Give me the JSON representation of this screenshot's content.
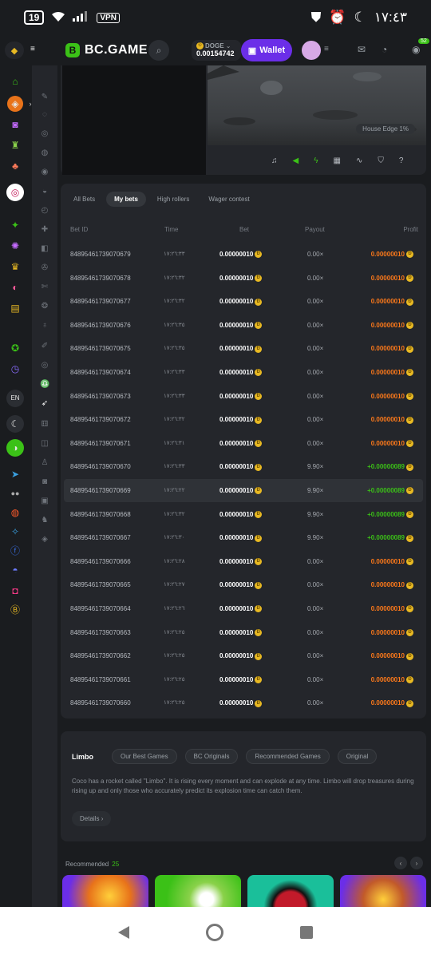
{
  "status": {
    "battery": "19",
    "vpn": "VPN",
    "time": "١٧:٤٣"
  },
  "header": {
    "logo_badge": "B",
    "logo": "BC.GAME",
    "currency_name": "DOGE",
    "balance": "0.00154742",
    "wallet_label": "Wallet",
    "chat_badge": "52"
  },
  "game": {
    "house_edge": "House Edge 1%"
  },
  "tabs": [
    "All Bets",
    "My bets",
    "High rollers",
    "Wager contest"
  ],
  "table": {
    "headers": {
      "id": "Bet ID",
      "time": "Time",
      "bet": "Bet",
      "payout": "Payout",
      "profit": "Profit"
    },
    "rows": [
      {
        "id": "84895461739070679",
        "time": "١٧:٢٦:٣٣",
        "bet": "0.00000010",
        "payout": "0.00×",
        "profit": "0.00000010",
        "win": false
      },
      {
        "id": "84895461739070678",
        "time": "١٧:٢٦:٣٢",
        "bet": "0.00000010",
        "payout": "0.00×",
        "profit": "0.00000010",
        "win": false
      },
      {
        "id": "84895461739070677",
        "time": "١٧:٢٦:٣٢",
        "bet": "0.00000010",
        "payout": "0.00×",
        "profit": "0.00000010",
        "win": false
      },
      {
        "id": "84895461739070676",
        "time": "١٧:٢٦:٣٥",
        "bet": "0.00000010",
        "payout": "0.00×",
        "profit": "0.00000010",
        "win": false
      },
      {
        "id": "84895461739070675",
        "time": "١٧:٢٦:٣٥",
        "bet": "0.00000010",
        "payout": "0.00×",
        "profit": "0.00000010",
        "win": false
      },
      {
        "id": "84895461739070674",
        "time": "١٧:٢٦:٣٣",
        "bet": "0.00000010",
        "payout": "0.00×",
        "profit": "0.00000010",
        "win": false
      },
      {
        "id": "84895461739070673",
        "time": "١٧:٢٦:٣٣",
        "bet": "0.00000010",
        "payout": "0.00×",
        "profit": "0.00000010",
        "win": false
      },
      {
        "id": "84895461739070672",
        "time": "١٧:٢٦:٣٢",
        "bet": "0.00000010",
        "payout": "0.00×",
        "profit": "0.00000010",
        "win": false
      },
      {
        "id": "84895461739070671",
        "time": "١٧:٢٦:٣١",
        "bet": "0.00000010",
        "payout": "0.00×",
        "profit": "0.00000010",
        "win": false
      },
      {
        "id": "84895461739070670",
        "time": "١٧:٢٦:٣٣",
        "bet": "0.00000010",
        "payout": "9.90×",
        "profit": "+0.00000089",
        "win": true
      },
      {
        "id": "84895461739070669",
        "time": "١٧:٢٦:٢٢",
        "bet": "0.00000010",
        "payout": "9.90×",
        "profit": "+0.00000089",
        "win": true
      },
      {
        "id": "84895461739070668",
        "time": "١٧:٢٦:٣٢",
        "bet": "0.00000010",
        "payout": "9.90×",
        "profit": "+0.00000089",
        "win": true
      },
      {
        "id": "84895461739070667",
        "time": "١٧:٢٦:٣٠",
        "bet": "0.00000010",
        "payout": "9.90×",
        "profit": "+0.00000089",
        "win": true
      },
      {
        "id": "84895461739070666",
        "time": "١٧:٢٦:٢٨",
        "bet": "0.00000010",
        "payout": "0.00×",
        "profit": "0.00000010",
        "win": false
      },
      {
        "id": "84895461739070665",
        "time": "١٧:٢٦:٢٧",
        "bet": "0.00000010",
        "payout": "0.00×",
        "profit": "0.00000010",
        "win": false
      },
      {
        "id": "84895461739070664",
        "time": "١٧:٢٦:٢٦",
        "bet": "0.00000010",
        "payout": "0.00×",
        "profit": "0.00000010",
        "win": false
      },
      {
        "id": "84895461739070663",
        "time": "١٧:٢٦:٢٥",
        "bet": "0.00000010",
        "payout": "0.00×",
        "profit": "0.00000010",
        "win": false
      },
      {
        "id": "84895461739070662",
        "time": "١٧:٢٦:٢٥",
        "bet": "0.00000010",
        "payout": "0.00×",
        "profit": "0.00000010",
        "win": false
      },
      {
        "id": "84895461739070661",
        "time": "١٧:٢٦:٢٥",
        "bet": "0.00000010",
        "payout": "0.00×",
        "profit": "0.00000010",
        "win": false
      },
      {
        "id": "84895461739070660",
        "time": "١٧:٢٦:٢٥",
        "bet": "0.00000010",
        "payout": "0.00×",
        "profit": "0.00000010",
        "win": false
      }
    ]
  },
  "info": {
    "title": "Limbo",
    "tags": [
      "Our Best Games",
      "BC Originals",
      "Recommended Games",
      "Original"
    ],
    "description": "Coco has a rocket called \"Limbo\". It is rising every moment and can explode at any time. Limbo will drop treasures during rising up and only those who accurately predict its explosion time can catch them.",
    "details_label": "Details"
  },
  "recommended": {
    "label": "Recommended",
    "count": "25"
  },
  "lang": "EN",
  "colors": {
    "accent": "#3bc117",
    "wallet": "#6b2ee8",
    "loss": "#ff7a1a",
    "win": "#3bc117"
  }
}
